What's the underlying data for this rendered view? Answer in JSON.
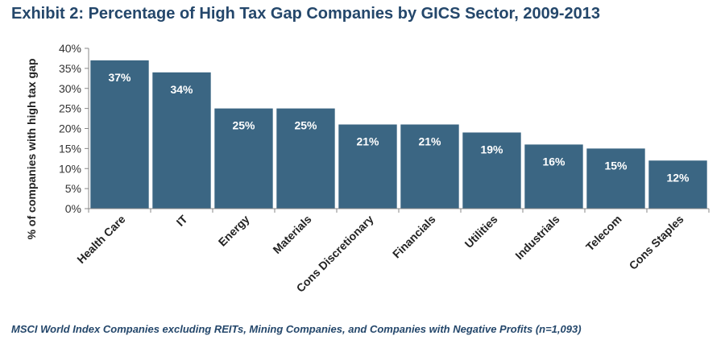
{
  "title": "Exhibit 2: Percentage of High Tax Gap Companies by GICS Sector, 2009-2013",
  "footnote": "MSCI World Index Companies excluding REITs, Mining Companies, and Companies with Negative Profits (n=1,093)",
  "colors": {
    "bar": "#3b6683",
    "title": "#24476b",
    "axis": "#888888"
  },
  "chart_data": {
    "type": "bar",
    "title": "Exhibit 2: Percentage of High Tax Gap Companies by GICS Sector, 2009-2013",
    "xlabel": "",
    "ylabel": "% of companies with high tax gap",
    "categories": [
      "Health Care",
      "IT",
      "Energy",
      "Materials",
      "Cons Discretionary",
      "Financials",
      "Utilities",
      "Industrials",
      "Telecom",
      "Cons Staples"
    ],
    "values": [
      37,
      34,
      25,
      25,
      21,
      21,
      19,
      16,
      15,
      12
    ],
    "value_labels": [
      "37%",
      "34%",
      "25%",
      "25%",
      "21%",
      "21%",
      "19%",
      "16%",
      "15%",
      "12%"
    ],
    "ylim": [
      0,
      40
    ],
    "yticks": [
      "0%",
      "5%",
      "10%",
      "15%",
      "20%",
      "25%",
      "30%",
      "35%",
      "40%"
    ],
    "grid": false,
    "legend": "none"
  }
}
